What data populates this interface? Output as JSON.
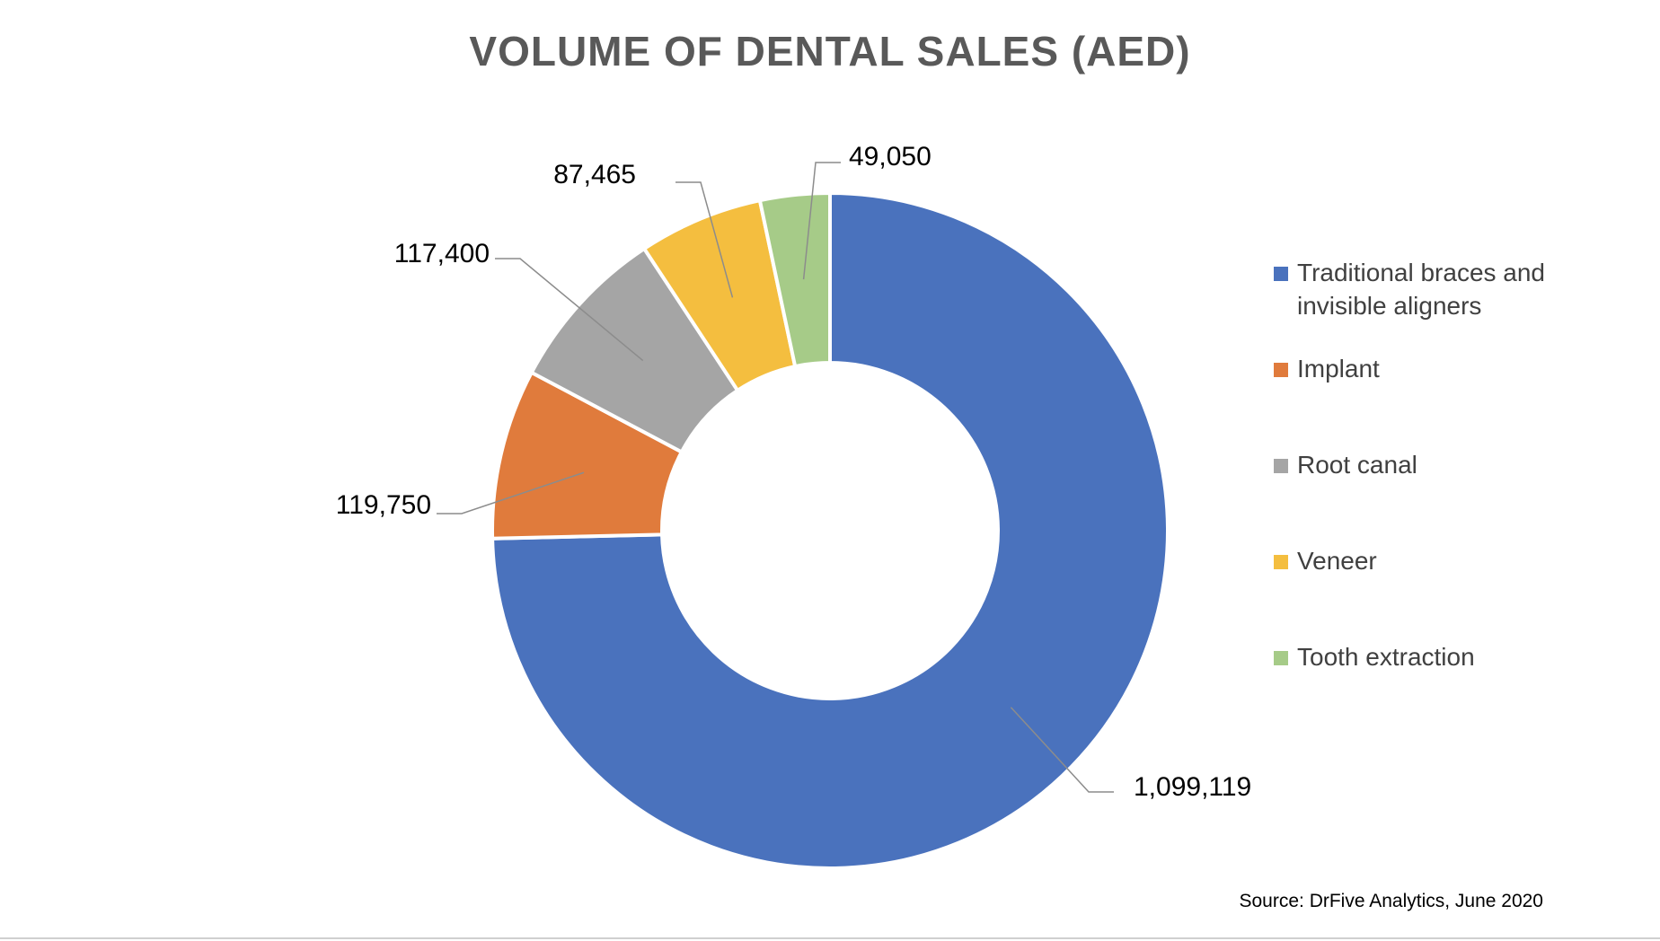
{
  "chart_data": {
    "type": "pie",
    "subtype": "donut",
    "title": "VOLUME OF DENTAL SALES (AED)",
    "source": "Source: DrFive Analytics, June 2020",
    "legend_position": "right",
    "categories": [
      "Traditional braces and invisible aligners",
      "Implant",
      "Root canal",
      "Veneer",
      "Tooth extraction"
    ],
    "legend_lines": [
      [
        "Traditional braces and",
        "invisible aligners"
      ],
      [
        "Implant"
      ],
      [
        "Root canal"
      ],
      [
        "Veneer"
      ],
      [
        "Tooth extraction"
      ]
    ],
    "values": [
      1099119,
      119750,
      117400,
      87465,
      49050
    ],
    "value_labels": [
      "1,099,119",
      "119,750",
      "117,400",
      "87,465",
      "49,050"
    ],
    "colors": [
      "#4A72BD",
      "#E07B3C",
      "#A5A5A5",
      "#F4BE3F",
      "#A6CB88"
    ]
  }
}
